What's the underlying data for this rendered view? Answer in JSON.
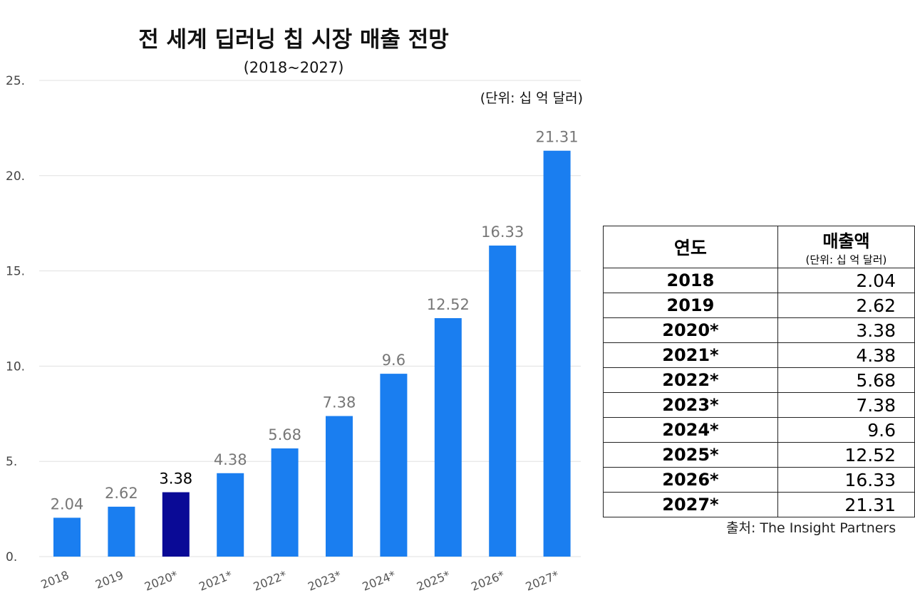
{
  "chart_data": {
    "type": "bar",
    "title": "전 세계 딥러닝 칩 시장 매출 전망",
    "subtitle": "(2018~2027)",
    "unit_note": "(단위: 십 억 달러)",
    "categories": [
      "2018",
      "2019",
      "2020*",
      "2021*",
      "2022*",
      "2023*",
      "2024*",
      "2025*",
      "2026*",
      "2027*"
    ],
    "values": [
      2.04,
      2.62,
      3.38,
      4.38,
      5.68,
      7.38,
      9.6,
      12.52,
      16.33,
      21.31
    ],
    "value_labels": [
      "2.04",
      "2.62",
      "3.38",
      "4.38",
      "5.68",
      "7.38",
      "9.6",
      "12.52",
      "16.33",
      "21.31"
    ],
    "highlight_category": "2020*",
    "ylim": [
      0,
      25
    ],
    "yticks": [
      0,
      5,
      10,
      15,
      20,
      25
    ],
    "ytick_labels": [
      "0.",
      "5.",
      "10.",
      "15.",
      "20.",
      "25."
    ],
    "grid": true,
    "xlabel": "",
    "ylabel": "",
    "colors": {
      "bar": "#1a7ef0",
      "highlight": "#0a0a96",
      "grid": "#e0e0e0"
    }
  },
  "table": {
    "header_year": "연도",
    "header_value": "매출액",
    "header_unit": "(단위: 십 억 달러)",
    "rows": [
      {
        "year": "2018",
        "value": "2.04"
      },
      {
        "year": "2019",
        "value": "2.62"
      },
      {
        "year": "2020*",
        "value": "3.38"
      },
      {
        "year": "2021*",
        "value": "4.38"
      },
      {
        "year": "2022*",
        "value": "5.68"
      },
      {
        "year": "2023*",
        "value": "7.38"
      },
      {
        "year": "2024*",
        "value": "9.6"
      },
      {
        "year": "2025*",
        "value": "12.52"
      },
      {
        "year": "2026*",
        "value": "16.33"
      },
      {
        "year": "2027*",
        "value": "21.31"
      }
    ]
  },
  "source": "출처: The Insight Partners"
}
